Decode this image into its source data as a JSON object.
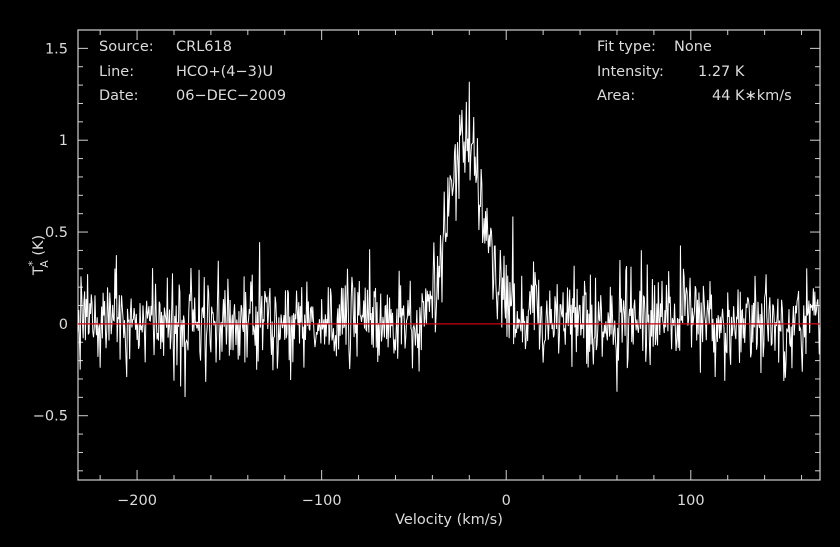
{
  "chart_data": {
    "type": "line",
    "title": "",
    "xlabel": "Velocity (km/s)",
    "ylabel_main": "T",
    "ylabel_sup": "*",
    "ylabel_sub": "A",
    "ylabel_unit": " (K)",
    "xlim": [
      -232,
      170
    ],
    "ylim": [
      -0.85,
      1.6
    ],
    "xticks": [
      {
        "value": -200,
        "label": "−200"
      },
      {
        "value": -100,
        "label": "−100"
      },
      {
        "value": 0,
        "label": "0"
      },
      {
        "value": 100,
        "label": "100"
      }
    ],
    "yticks": [
      {
        "value": -0.5,
        "label": "−0.5"
      },
      {
        "value": 0,
        "label": "0"
      },
      {
        "value": 0.5,
        "label": "0.5"
      },
      {
        "value": 1,
        "label": "1"
      },
      {
        "value": 1.5,
        "label": "1.5"
      }
    ],
    "baseline": 0,
    "spectrum": {
      "channel_spacing_kms": 0.4,
      "noise_rms_K": 0.13,
      "line_center_kms": -23,
      "line_peak_K": 1.1,
      "line_width_kms": 13,
      "profile_samples": [
        {
          "v": -232,
          "T": 0.0
        },
        {
          "v": -45,
          "T": 0.0
        },
        {
          "v": -38,
          "T": 0.15
        },
        {
          "v": -33,
          "T": 0.55
        },
        {
          "v": -28,
          "T": 0.85
        },
        {
          "v": -23,
          "T": 1.1
        },
        {
          "v": -18,
          "T": 0.95
        },
        {
          "v": -13,
          "T": 0.65
        },
        {
          "v": -8,
          "T": 0.4
        },
        {
          "v": -3,
          "T": 0.2
        },
        {
          "v": 5,
          "T": 0.05
        },
        {
          "v": 170,
          "T": 0.0
        }
      ]
    },
    "info_left": [
      {
        "label": "Source:",
        "value": "CRL618"
      },
      {
        "label": "Line:",
        "value": "HCO+(4−3)U"
      },
      {
        "label": "Date:",
        "value": "06−DEC−2009"
      }
    ],
    "info_right": [
      {
        "label": "Fit type:",
        "value": "None"
      },
      {
        "label": "Intensity:",
        "value": "1.27 K"
      },
      {
        "label": "Area:",
        "value": "44 K∗km/s"
      }
    ],
    "colors": {
      "background": "#000000",
      "spectrum": "#ffffff",
      "baseline": "#c8000e",
      "axes": "#d0d0d0",
      "text": "#dcdcdc"
    }
  }
}
